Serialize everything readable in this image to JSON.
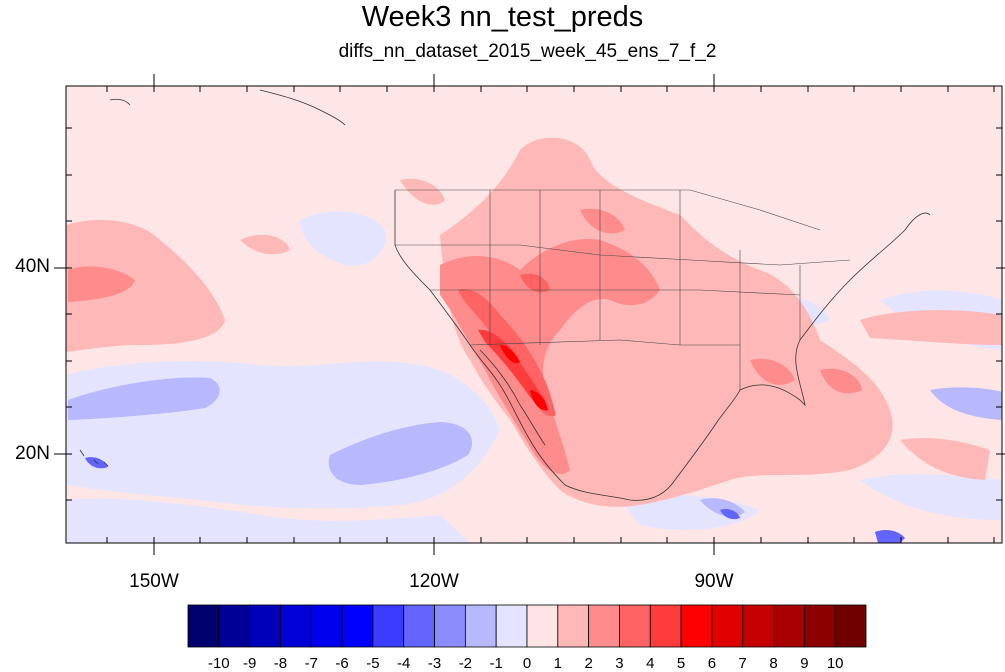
{
  "title": "Week3 nn_test_preds",
  "subtitle": "diffs_nn_dataset_2015_week_45_ens_7_f_2",
  "lat_labels": [
    "40N",
    "20N"
  ],
  "lon_labels": [
    "150W",
    "120W",
    "90W"
  ],
  "colorbar": {
    "labels": [
      "-10",
      "-9",
      "-8",
      "-7",
      "-6",
      "-5",
      "-4",
      "-3",
      "-2",
      "-1",
      "0",
      "1",
      "2",
      "3",
      "4",
      "5",
      "6",
      "7",
      "8",
      "9",
      "10"
    ],
    "colors": [
      "#00006e",
      "#000096",
      "#0000b8",
      "#0000d8",
      "#0000ee",
      "#0000ff",
      "#3c3cff",
      "#6464ff",
      "#8c8cff",
      "#b8b8ff",
      "#e4e4ff",
      "#ffe4e4",
      "#ffb8b8",
      "#ff8c8c",
      "#ff6464",
      "#ff3c3c",
      "#ff0000",
      "#e00000",
      "#c40000",
      "#a80000",
      "#8c0000",
      "#700000"
    ]
  },
  "map": {
    "background_color": "#ffe6e6",
    "projection": "cylindrical-equidistant",
    "lon_range": [
      -159.1,
      -60.8
    ],
    "lat_range": [
      9.7,
      58.7
    ]
  }
}
